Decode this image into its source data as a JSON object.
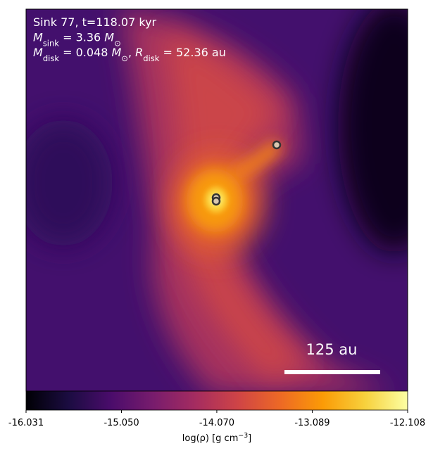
{
  "chart_data": {
    "type": "image",
    "annotations": [
      [
        {
          "text": "Sink 77, t=118.07 kyr"
        }
      ],
      [
        {
          "text": "M",
          "italic": true
        },
        {
          "text": "sink",
          "sub": true
        },
        {
          "text": " = 3.36 "
        },
        {
          "text": "M",
          "italic": true
        },
        {
          "text": "⊙",
          "sub": true
        }
      ],
      [
        {
          "text": "M",
          "italic": true
        },
        {
          "text": "disk",
          "sub": true
        },
        {
          "text": " = 0.048 "
        },
        {
          "text": "M",
          "italic": true
        },
        {
          "text": "⊙",
          "sub": true
        },
        {
          "text": ", "
        },
        {
          "text": "R",
          "italic": true
        },
        {
          "text": "disk",
          "sub": true
        },
        {
          "text": " = 52.36 au"
        }
      ]
    ],
    "scale_bar_label": "125 au",
    "colorbar": {
      "colormap": "inferno",
      "lim": [
        -16.031,
        -12.108
      ],
      "ticks": [
        -16.031,
        {
          "value": -15.05,
          "label": "-15.050"
        },
        {
          "value": -14.07,
          "label": "-14.070"
        },
        -13.089,
        -12.108
      ],
      "label": [
        {
          "text": "log(ρ) [g cm"
        },
        {
          "text": "−3",
          "sup": true
        },
        {
          "text": "]"
        }
      ]
    }
  }
}
